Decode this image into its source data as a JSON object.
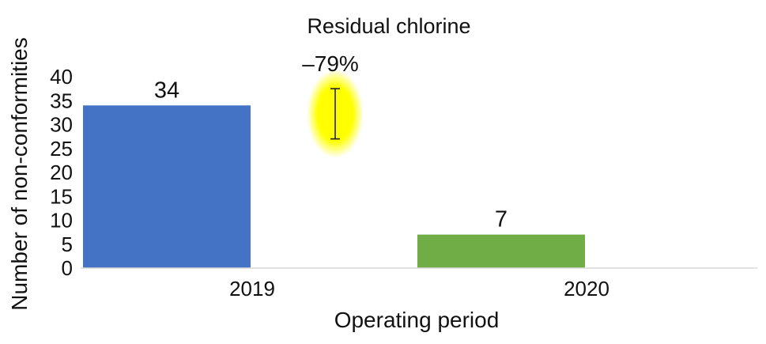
{
  "chart_data": {
    "type": "bar",
    "title": "Residual chlorine",
    "xlabel": "Operating period",
    "ylabel": "Number of non-conformities",
    "categories": [
      "2019",
      "2020"
    ],
    "values": [
      34,
      7
    ],
    "data_labels": [
      "34",
      "7"
    ],
    "bar_colors": [
      "#4472c4",
      "#70ad47"
    ],
    "ylim": [
      0,
      40
    ],
    "yticks": [
      0,
      5,
      10,
      15,
      20,
      25,
      30,
      35,
      40
    ],
    "ytick_labels": [
      "0",
      "5",
      "10",
      "15",
      "20",
      "25",
      "30",
      "35",
      "40"
    ],
    "grid": false,
    "legend": "none",
    "annotation": {
      "text": "–79%",
      "kind": "error-bar-marker",
      "range": [
        27,
        37.5
      ],
      "highlight_color": "#ffff00"
    }
  }
}
